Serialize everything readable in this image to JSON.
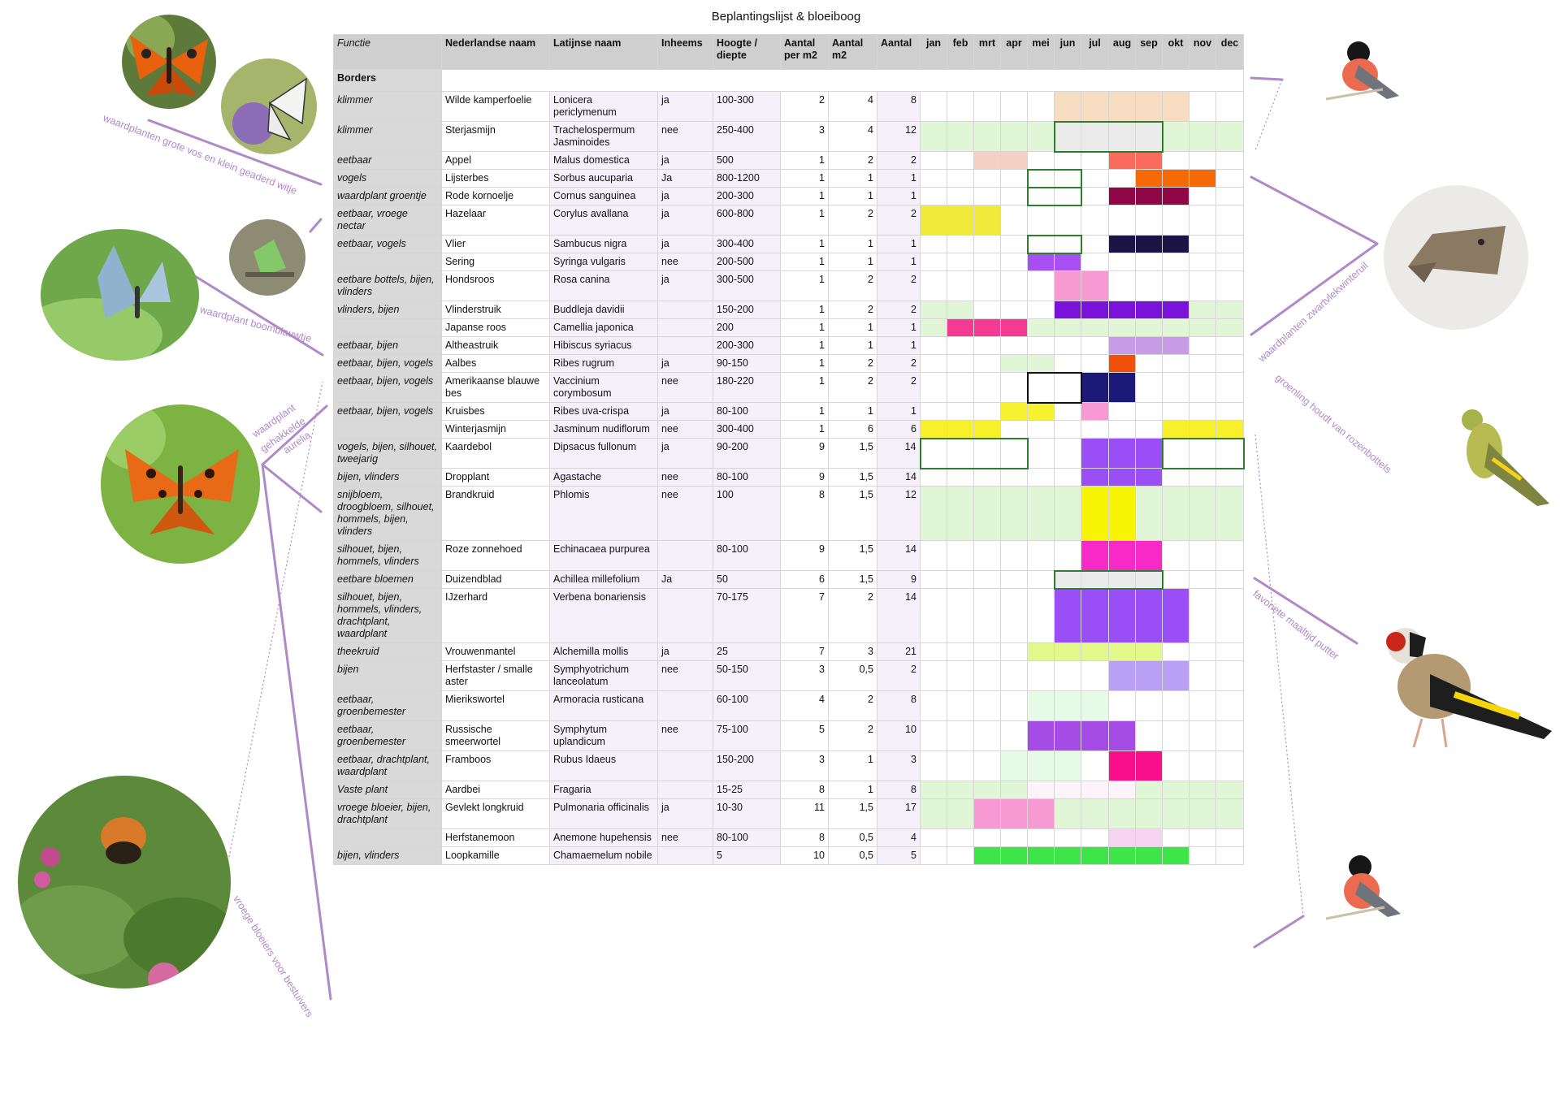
{
  "title": "Beplantingslijst & bloeiboog",
  "headers": {
    "functie": "Functie",
    "ned": "Nederlandse naam",
    "lat": "Latijnse naam",
    "inh": "Inheems",
    "hoogte": "Hoogte / diepte",
    "aantal_m2": "Aantal per m2",
    "aantal_tot_m2": "Aantal m2",
    "aantal": "Aantal",
    "months": [
      "jan",
      "feb",
      "mrt",
      "apr",
      "mei",
      "jun",
      "jul",
      "aug",
      "sep",
      "okt",
      "nov",
      "dec"
    ]
  },
  "section": "Borders",
  "colors": {
    "leaf": "#e1f6d6",
    "accent": "#b089c9",
    "outline": "#2e7d32"
  },
  "rows": [
    {
      "functie": "klimmer",
      "ned": "Wilde kamperfoelie",
      "lat": "Lonicera periclymenum",
      "inh": "ja",
      "hoogte": "100-300",
      "per_m2": "2",
      "m2": "4",
      "aantal": "8",
      "months": [
        "",
        "",
        "",
        "",
        "",
        "#f6dcc0",
        "#f6dcc0",
        "#f6dcc0",
        "#f6dcc0",
        "#f6dcc0",
        "",
        ""
      ],
      "outline": []
    },
    {
      "functie": "klimmer",
      "ned": "Sterjasmijn",
      "lat": "Trachelospermum Jasminoides",
      "inh": "nee",
      "hoogte": "250-400",
      "per_m2": "3",
      "m2": "4",
      "aantal": "12",
      "months": [
        "#e1f6d6",
        "#e1f6d6",
        "#e1f6d6",
        "#e1f6d6",
        "#e1f6d6",
        "#ebebeb",
        "#ebebeb",
        "#ebebeb",
        "#ebebeb",
        "#e1f6d6",
        "#e1f6d6",
        "#e1f6d6"
      ],
      "outline": [
        5,
        8
      ]
    },
    {
      "functie": "eetbaar",
      "ned": "Appel",
      "lat": "Malus domestica",
      "inh": "ja",
      "hoogte": "500",
      "per_m2": "1",
      "m2": "2",
      "aantal": "2",
      "months": [
        "",
        "",
        "#f7d0c4",
        "#f7d0c4",
        "",
        "",
        "",
        "#f96b5c",
        "#f96b5c",
        "",
        "",
        ""
      ],
      "outline": []
    },
    {
      "functie": "vogels",
      "ned": "Lijsterbes",
      "lat": "Sorbus aucuparia",
      "inh": "Ja",
      "hoogte": "800-1200",
      "per_m2": "1",
      "m2": "1",
      "aantal": "1",
      "months": [
        "",
        "",
        "",
        "",
        "",
        "",
        "",
        "",
        "#f56a06",
        "#f56a06",
        "#f56a06",
        ""
      ],
      "outline": [
        4,
        5
      ]
    },
    {
      "functie": "waardplant groentje",
      "ned": "Rode kornoelje",
      "lat": "Cornus sanguinea",
      "inh": "ja",
      "hoogte": "200-300",
      "per_m2": "1",
      "m2": "1",
      "aantal": "1",
      "months": [
        "",
        "",
        "",
        "",
        "",
        "",
        "",
        "#8f0845",
        "#8f0845",
        "#8f0845",
        "",
        ""
      ],
      "outline": [
        4,
        5
      ]
    },
    {
      "functie": "eetbaar, vroege nectar",
      "ned": "Hazelaar",
      "lat": "Corylus avallana",
      "inh": "ja",
      "hoogte": "600-800",
      "per_m2": "1",
      "m2": "2",
      "aantal": "2",
      "months": [
        "#f1ea3a",
        "#f1ea3a",
        "#f1ea3a",
        "",
        "",
        "",
        "",
        "",
        "",
        "",
        "",
        ""
      ],
      "outline": []
    },
    {
      "functie": "eetbaar, vogels",
      "ned": "Vlier",
      "lat": "Sambucus nigra",
      "inh": "ja",
      "hoogte": "300-400",
      "per_m2": "1",
      "m2": "1",
      "aantal": "1",
      "months": [
        "",
        "",
        "",
        "",
        "",
        "",
        "",
        "#1b1445",
        "#1b1445",
        "#1b1445",
        "",
        ""
      ],
      "outline": [
        4,
        5
      ]
    },
    {
      "functie": "",
      "ned": "Sering",
      "lat": "Syringa vulgaris",
      "inh": "nee",
      "hoogte": "200-500",
      "per_m2": "1",
      "m2": "1",
      "aantal": "1",
      "months": [
        "",
        "",
        "",
        "",
        "#a64ff2",
        "#a64ff2",
        "",
        "",
        "",
        "",
        "",
        ""
      ],
      "outline": []
    },
    {
      "functie": "eetbare bottels, bijen, vlinders",
      "ned": "Hondsroos",
      "lat": "Rosa canina",
      "inh": "ja",
      "hoogte": "300-500",
      "per_m2": "1",
      "m2": "2",
      "aantal": "2",
      "months": [
        "",
        "",
        "",
        "",
        "",
        "#f79ad3",
        "#f79ad3",
        "",
        "",
        "",
        "",
        ""
      ],
      "outline": []
    },
    {
      "functie": "vlinders, bijen",
      "ned": "Vlinderstruik",
      "lat": "Buddleja davidii",
      "inh": "",
      "hoogte": "150-200",
      "per_m2": "1",
      "m2": "2",
      "aantal": "2",
      "months": [
        "#e1f6d6",
        "#e1f6d6",
        "",
        "",
        "",
        "#7a13d9",
        "#7a13d9",
        "#7a13d9",
        "#7a13d9",
        "#7a13d9",
        "#e1f6d6",
        "#e1f6d6"
      ],
      "outline": []
    },
    {
      "functie": "",
      "ned": "Japanse roos",
      "lat": "Camellia japonica",
      "inh": "",
      "hoogte": "200",
      "per_m2": "1",
      "m2": "1",
      "aantal": "1",
      "months": [
        "#e1f6d6",
        "#f53a93",
        "#f53a93",
        "#f53a93",
        "#e1f6d6",
        "#e1f6d6",
        "#e1f6d6",
        "#e1f6d6",
        "#e1f6d6",
        "#e1f6d6",
        "#e1f6d6",
        "#e1f6d6"
      ],
      "outline": []
    },
    {
      "functie": "eetbaar, bijen",
      "ned": "Altheastruik",
      "lat": "Hibiscus syriacus",
      "inh": "",
      "hoogte": "200-300",
      "per_m2": "1",
      "m2": "1",
      "aantal": "1",
      "months": [
        "",
        "",
        "",
        "",
        "",
        "",
        "",
        "#c79be6",
        "#c79be6",
        "#c79be6",
        "",
        ""
      ],
      "outline": []
    },
    {
      "functie": "eetbaar, bijen, vogels",
      "ned": "Aalbes",
      "lat": "Ribes rugrum",
      "inh": "ja",
      "hoogte": "90-150",
      "per_m2": "1",
      "m2": "2",
      "aantal": "2",
      "months": [
        "",
        "",
        "",
        "#e1f6d6",
        "#e1f6d6",
        "",
        "",
        "#f0500a",
        "",
        "",
        "",
        ""
      ],
      "outline": []
    },
    {
      "functie": "eetbaar, bijen, vogels",
      "ned": "Amerikaanse blauwe bes",
      "lat": "Vaccinium corymbosum",
      "inh": "nee",
      "hoogte": "180-220",
      "per_m2": "1",
      "m2": "2",
      "aantal": "2",
      "months": [
        "",
        "",
        "",
        "",
        "",
        "",
        "#1c1a78",
        "#1c1a78",
        "",
        "",
        "",
        ""
      ],
      "outline": [
        4,
        5
      ],
      "outline_color": "#111111"
    },
    {
      "functie": "eetbaar, bijen, vogels",
      "ned": "Kruisbes",
      "lat": "Ribes uva-crispa",
      "inh": "ja",
      "hoogte": "80-100",
      "per_m2": "1",
      "m2": "1",
      "aantal": "1",
      "months": [
        "",
        "",
        "",
        "#f7f230",
        "#f7f230",
        "",
        "#f79ad3",
        "",
        "",
        "",
        "",
        ""
      ],
      "outline": []
    },
    {
      "functie": "",
      "ned": "Winterjasmijn",
      "lat": "Jasminum nudiflorum",
      "inh": "nee",
      "hoogte": "300-400",
      "per_m2": "1",
      "m2": "6",
      "aantal": "6",
      "months": [
        "#f7f02a",
        "#f7f02a",
        "#f7f02a",
        "",
        "",
        "",
        "",
        "",
        "",
        "#f7f02a",
        "#f7f02a",
        "#f7f02a"
      ],
      "outline": []
    },
    {
      "functie": "vogels, bijen, silhouet, tweejarig",
      "ned": "Kaardebol",
      "lat": "Dipsacus fullonum",
      "inh": "ja",
      "hoogte": "90-200",
      "per_m2": "9",
      "m2": "1,5",
      "aantal": "14",
      "months": [
        "",
        "",
        "",
        "",
        "",
        "",
        "#9a4ef5",
        "#9a4ef5",
        "#9a4ef5",
        "",
        "",
        ""
      ],
      "outline": [
        0,
        3
      ],
      "outline2": [
        9,
        11
      ]
    },
    {
      "functie": "bijen, vlinders",
      "ned": "Dropplant",
      "lat": "Agastache",
      "inh": "nee",
      "hoogte": "80-100",
      "per_m2": "9",
      "m2": "1,5",
      "aantal": "14",
      "months": [
        "",
        "",
        "",
        "",
        "",
        "",
        "#9a4ef5",
        "#9a4ef5",
        "#9a4ef5",
        "",
        "",
        ""
      ],
      "outline": []
    },
    {
      "functie": "snijbloem, droogbloem, silhouet, hommels, bijen, vlinders",
      "ned": "Brandkruid",
      "lat": "Phlomis",
      "inh": "nee",
      "hoogte": "100",
      "per_m2": "8",
      "m2": "1,5",
      "aantal": "12",
      "months": [
        "#e1f6d6",
        "#e1f6d6",
        "#e1f6d6",
        "#e1f6d6",
        "#e1f6d6",
        "#e1f6d6",
        "#f7f404",
        "#f7f404",
        "#e1f6d6",
        "#e1f6d6",
        "#e1f6d6",
        "#e1f6d6"
      ],
      "outline": []
    },
    {
      "functie": "silhouet, bijen, hommels, vlinders",
      "ned": "Roze zonnehoed",
      "lat": "Echinacaea purpurea",
      "inh": "",
      "hoogte": "80-100",
      "per_m2": "9",
      "m2": "1,5",
      "aantal": "14",
      "months": [
        "",
        "",
        "",
        "",
        "",
        "",
        "#f72ac7",
        "#f72ac7",
        "#f72ac7",
        "",
        "",
        ""
      ],
      "outline": []
    },
    {
      "functie": "eetbare bloemen",
      "ned": "Duizendblad",
      "lat": "Achillea millefolium",
      "inh": "Ja",
      "hoogte": "50",
      "per_m2": "6",
      "m2": "1,5",
      "aantal": "9",
      "months": [
        "",
        "",
        "",
        "",
        "",
        "#ebebeb",
        "#ebebeb",
        "#ebebeb",
        "#ebebeb",
        "",
        "",
        ""
      ],
      "outline": [
        5,
        8
      ]
    },
    {
      "functie": "silhouet, bijen, hommels, vlinders, drachtplant, waardplant",
      "ned": "IJzerhard",
      "lat": "Verbena bonariensis",
      "inh": "",
      "hoogte": "70-175",
      "per_m2": "7",
      "m2": "2",
      "aantal": "14",
      "months": [
        "",
        "",
        "",
        "",
        "",
        "#9a4ef5",
        "#9a4ef5",
        "#9a4ef5",
        "#9a4ef5",
        "#9a4ef5",
        "",
        ""
      ],
      "outline": []
    },
    {
      "functie": "theekruid",
      "ned": "Vrouwenmantel",
      "lat": "Alchemilla mollis",
      "inh": "ja",
      "hoogte": "25",
      "per_m2": "7",
      "m2": "3",
      "aantal": "21",
      "months": [
        "",
        "",
        "",
        "",
        "#e3f98c",
        "#e3f98c",
        "#e3f98c",
        "#e3f98c",
        "#e3f98c",
        "",
        "",
        ""
      ],
      "outline": []
    },
    {
      "functie": "bijen",
      "ned": "Herfstaster / smalle aster",
      "lat": "Symphyotrichum lanceolatum",
      "inh": "nee",
      "hoogte": "50-150",
      "per_m2": "3",
      "m2": "0,5",
      "aantal": "2",
      "months": [
        "",
        "",
        "",
        "",
        "",
        "",
        "",
        "#b9a0f5",
        "#b9a0f5",
        "#b9a0f5",
        "",
        ""
      ],
      "outline": []
    },
    {
      "functie": "eetbaar, groenbemester",
      "ned": "Mierikswortel",
      "lat": "Armoracia rusticana",
      "inh": "",
      "hoogte": "60-100",
      "per_m2": "4",
      "m2": "2",
      "aantal": "8",
      "months": [
        "",
        "",
        "",
        "",
        "#e6fbe6",
        "#e6fbe6",
        "#e6fbe6",
        "",
        "",
        "",
        "",
        ""
      ],
      "outline": []
    },
    {
      "functie": "eetbaar, groenbemester",
      "ned": "Russische smeerwortel",
      "lat": "Symphytum uplandicum",
      "inh": "nee",
      "hoogte": "75-100",
      "per_m2": "5",
      "m2": "2",
      "aantal": "10",
      "months": [
        "",
        "",
        "",
        "",
        "#a54ce6",
        "#a54ce6",
        "#a54ce6",
        "#a54ce6",
        "",
        "",
        "",
        ""
      ],
      "outline": []
    },
    {
      "functie": "eetbaar, drachtplant, waardplant",
      "ned": "Framboos",
      "lat": "Rubus Idaeus",
      "inh": "",
      "hoogte": "150-200",
      "per_m2": "3",
      "m2": "1",
      "aantal": "3",
      "months": [
        "",
        "",
        "",
        "#e6fbe6",
        "#e6fbe6",
        "#e6fbe6",
        "",
        "#f90f8a",
        "#f90f8a",
        "",
        "",
        ""
      ],
      "outline": []
    },
    {
      "functie": "Vaste plant",
      "ned": "Aardbei",
      "lat": "Fragaria",
      "inh": "",
      "hoogte": "15-25",
      "per_m2": "8",
      "m2": "1",
      "aantal": "8",
      "months": [
        "#e1f6d6",
        "#e1f6d6",
        "#e1f6d6",
        "#e1f6d6",
        "#fcf4f8",
        "#fcf4f8",
        "#fcf4f8",
        "#fcf4f8",
        "#e1f6d6",
        "#e1f6d6",
        "#e1f6d6",
        "#e1f6d6"
      ],
      "outline": []
    },
    {
      "functie": "vroege bloeier, bijen, drachtplant",
      "ned": "Gevlekt longkruid",
      "lat": "Pulmonaria officinalis",
      "inh": "ja",
      "hoogte": "10-30",
      "per_m2": "11",
      "m2": "1,5",
      "aantal": "17",
      "months": [
        "#e1f6d6",
        "#e1f6d6",
        "#f79ad3",
        "#f79ad3",
        "#f79ad3",
        "#e1f6d6",
        "#e1f6d6",
        "#e1f6d6",
        "#e1f6d6",
        "#e1f6d6",
        "#e1f6d6",
        "#e1f6d6"
      ],
      "outline": []
    },
    {
      "functie": "",
      "ned": "Herfstanemoon",
      "lat": "Anemone hupehensis",
      "inh": "nee",
      "hoogte": "80-100",
      "per_m2": "8",
      "m2": "0,5",
      "aantal": "4",
      "months": [
        "",
        "",
        "",
        "",
        "",
        "",
        "",
        "#f6d4f0",
        "#f6d4f0",
        "",
        "",
        ""
      ],
      "outline": []
    },
    {
      "functie": "bijen, vlinders",
      "ned": "Loopkamille",
      "lat": "Chamaemelum nobile",
      "inh": "",
      "hoogte": "5",
      "per_m2": "10",
      "m2": "0,5",
      "aantal": "5",
      "months": [
        "",
        "",
        "#3de548",
        "#3de548",
        "#3de548",
        "#3de548",
        "#3de548",
        "#3de548",
        "#3de548",
        "#3de548",
        "",
        ""
      ],
      "outline": []
    }
  ],
  "captions": {
    "vos": "waardplanten grote vos en klein geaderd witje",
    "boomblauw": "waardplant boomblauwtje",
    "aurelia": [
      "waardplant",
      "gehakkelde",
      "aurelia"
    ],
    "bestuivers": "vroege bloeiers voor bestuivers",
    "winteruil": "waardplanten zwartvlekwinteruil",
    "groenling": "groenling houdt van rozenbottels",
    "putter": "favoriete maaltijd putter"
  },
  "photos": [
    "tortoiseshell-butterfly",
    "white-butterfly",
    "holly-blue-butterfly",
    "green-hairstreak",
    "comma-butterfly",
    "bumblebee-on-lungwort",
    "bullfinch",
    "moth",
    "greenfinch",
    "goldfinch",
    "bullfinch"
  ]
}
